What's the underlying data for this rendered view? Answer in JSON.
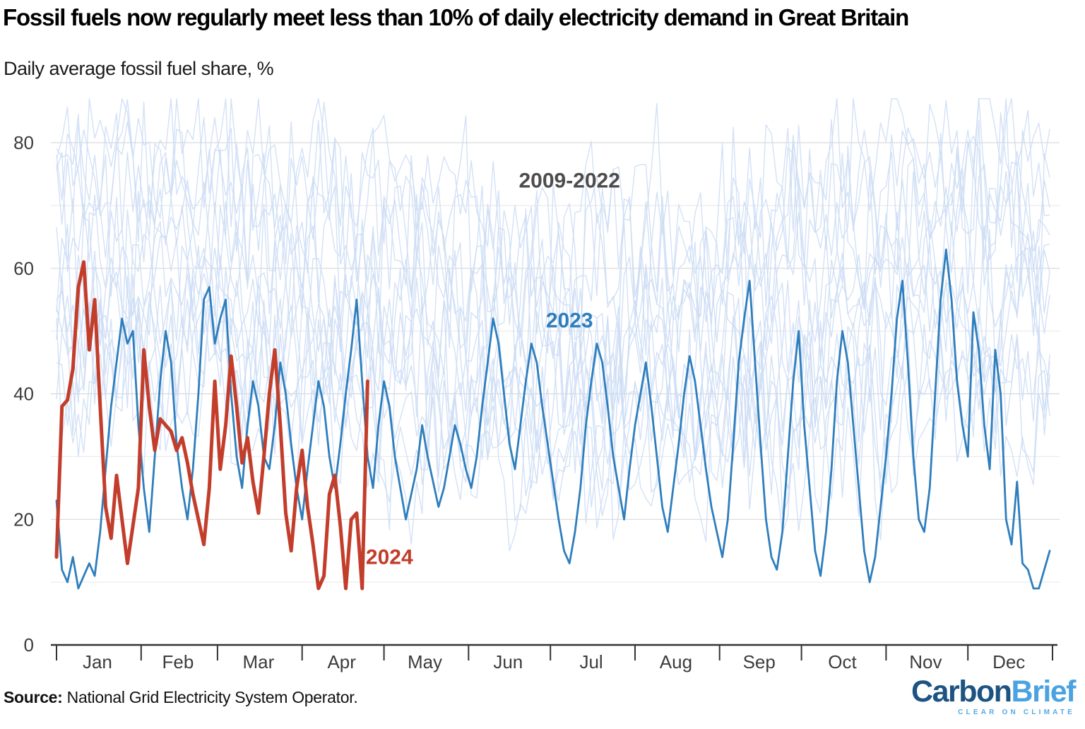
{
  "header": {
    "title": "Fossil fuels now regularly meet less than 10% of daily electricity demand in Great Britain",
    "subtitle": "Daily average fossil fuel share, %"
  },
  "footer": {
    "source_label": "Source:",
    "source_text": " National Grid Electricity System Operator.",
    "logo": {
      "word_part1": "Carbon",
      "word_part2": "Brief",
      "tagline": "CLEAR ON CLIMATE",
      "color_part1": "#1d5382",
      "color_part2": "#4aa3e0"
    }
  },
  "chart_data": {
    "type": "line",
    "title": "Fossil fuels now regularly meet less than 10% of daily electricity demand in Great Britain",
    "subtitle": "Daily average fossil fuel share, %",
    "ylabel": "Daily average fossil fuel share, %",
    "xlabel": "",
    "ylim": [
      0,
      88
    ],
    "grid": "horizontal",
    "colors": {
      "grid_major": "#d9d9d9",
      "grid_minor": "#ececec",
      "axis": "#333333",
      "tick_label": "#3c3c3c",
      "background_series": "#cbdcf5",
      "series_2023": "#2e7ebd",
      "series_2024": "#c33d2b",
      "annotation_gray": "#4d4d4d"
    },
    "x_axis": {
      "month_labels": [
        "Jan",
        "Feb",
        "Mar",
        "Apr",
        "May",
        "Jun",
        "Jul",
        "Aug",
        "Sep",
        "Oct",
        "Nov",
        "Dec"
      ],
      "month_start_days": [
        1,
        32,
        60,
        91,
        121,
        152,
        182,
        213,
        244,
        274,
        305,
        335,
        366
      ],
      "domain_days": [
        1,
        366
      ]
    },
    "y_axis": {
      "tick_labels": [
        0,
        20,
        40,
        60,
        80
      ],
      "gridlines": [
        10,
        20,
        30,
        40,
        50,
        60,
        70,
        80
      ]
    },
    "annotations": [
      {
        "text": "2009-2022",
        "x_day": 189,
        "y_value": 74.0,
        "color": "#4d4d4d"
      },
      {
        "text": "2023",
        "x_day": 189,
        "y_value": 51.7,
        "color": "#2e7ebd"
      },
      {
        "text": "2024",
        "x_day": 123,
        "y_value": 14.0,
        "color": "#c33d2b"
      }
    ],
    "series": [
      {
        "name": "2009-2022",
        "role": "background",
        "color": "#cbdcf5",
        "stroke_width": 1.4,
        "opacity": 0.85,
        "step_days": 2,
        "seasonal_amplitude": 7,
        "noise": 10,
        "value_clamp": [
          6,
          87
        ],
        "years": [
          {
            "year": 2009,
            "base": 70,
            "seed": 11
          },
          {
            "year": 2010,
            "base": 73,
            "seed": 22
          },
          {
            "year": 2011,
            "base": 65,
            "seed": 33
          },
          {
            "year": 2012,
            "base": 71,
            "seed": 44
          },
          {
            "year": 2013,
            "base": 64,
            "seed": 55
          },
          {
            "year": 2014,
            "base": 57,
            "seed": 66
          },
          {
            "year": 2015,
            "base": 55,
            "seed": 77
          },
          {
            "year": 2016,
            "base": 50,
            "seed": 88
          },
          {
            "year": 2017,
            "base": 48,
            "seed": 99
          },
          {
            "year": 2018,
            "base": 45,
            "seed": 110
          },
          {
            "year": 2019,
            "base": 40,
            "seed": 121
          },
          {
            "year": 2020,
            "base": 36,
            "seed": 132
          },
          {
            "year": 2021,
            "base": 40,
            "seed": 143
          },
          {
            "year": 2022,
            "base": 38,
            "seed": 154
          }
        ]
      },
      {
        "name": "2023",
        "role": "highlight",
        "color": "#2e7ebd",
        "stroke_width": 2.8,
        "start_day": 1,
        "step_days": 2,
        "values": [
          23,
          12,
          10,
          14,
          9,
          11,
          13,
          11,
          18,
          28,
          38,
          45,
          52,
          48,
          50,
          35,
          25,
          18,
          30,
          42,
          50,
          45,
          32,
          25,
          20,
          28,
          40,
          55,
          57,
          48,
          52,
          55,
          40,
          30,
          25,
          35,
          42,
          38,
          30,
          28,
          35,
          45,
          40,
          32,
          25,
          20,
          28,
          35,
          42,
          38,
          30,
          25,
          32,
          40,
          47,
          55,
          42,
          30,
          25,
          35,
          42,
          38,
          30,
          25,
          20,
          24,
          28,
          35,
          30,
          26,
          22,
          25,
          30,
          35,
          32,
          28,
          25,
          30,
          38,
          45,
          52,
          48,
          40,
          32,
          28,
          35,
          42,
          48,
          45,
          38,
          32,
          26,
          20,
          15,
          13,
          18,
          25,
          35,
          42,
          48,
          45,
          38,
          30,
          25,
          20,
          28,
          35,
          40,
          45,
          38,
          30,
          22,
          18,
          25,
          32,
          40,
          46,
          42,
          35,
          28,
          22,
          18,
          14,
          20,
          32,
          45,
          52,
          58,
          45,
          32,
          20,
          14,
          12,
          18,
          30,
          42,
          50,
          35,
          25,
          15,
          11,
          18,
          28,
          42,
          50,
          45,
          35,
          25,
          15,
          10,
          14,
          22,
          30,
          40,
          52,
          58,
          45,
          30,
          20,
          18,
          25,
          40,
          55,
          63,
          55,
          42,
          35,
          30,
          53,
          47,
          35,
          28,
          47,
          40,
          20,
          16,
          26,
          13,
          12,
          9,
          9,
          12,
          15
        ]
      },
      {
        "name": "2024",
        "role": "highlight",
        "color": "#c33d2b",
        "stroke_width": 5,
        "start_day": 1,
        "step_days": 2,
        "values": [
          14,
          38,
          39,
          44,
          57,
          61,
          47,
          55,
          38,
          22,
          17,
          27,
          20,
          13,
          19,
          25,
          47,
          38,
          31,
          36,
          35,
          34,
          31,
          33,
          29,
          24,
          20,
          16,
          25,
          42,
          28,
          35,
          46,
          38,
          29,
          33,
          26,
          21,
          30,
          40,
          47,
          35,
          21,
          15,
          25,
          31,
          22,
          16,
          9,
          11,
          24,
          27,
          19,
          9,
          20,
          21,
          9,
          42
        ]
      }
    ]
  }
}
